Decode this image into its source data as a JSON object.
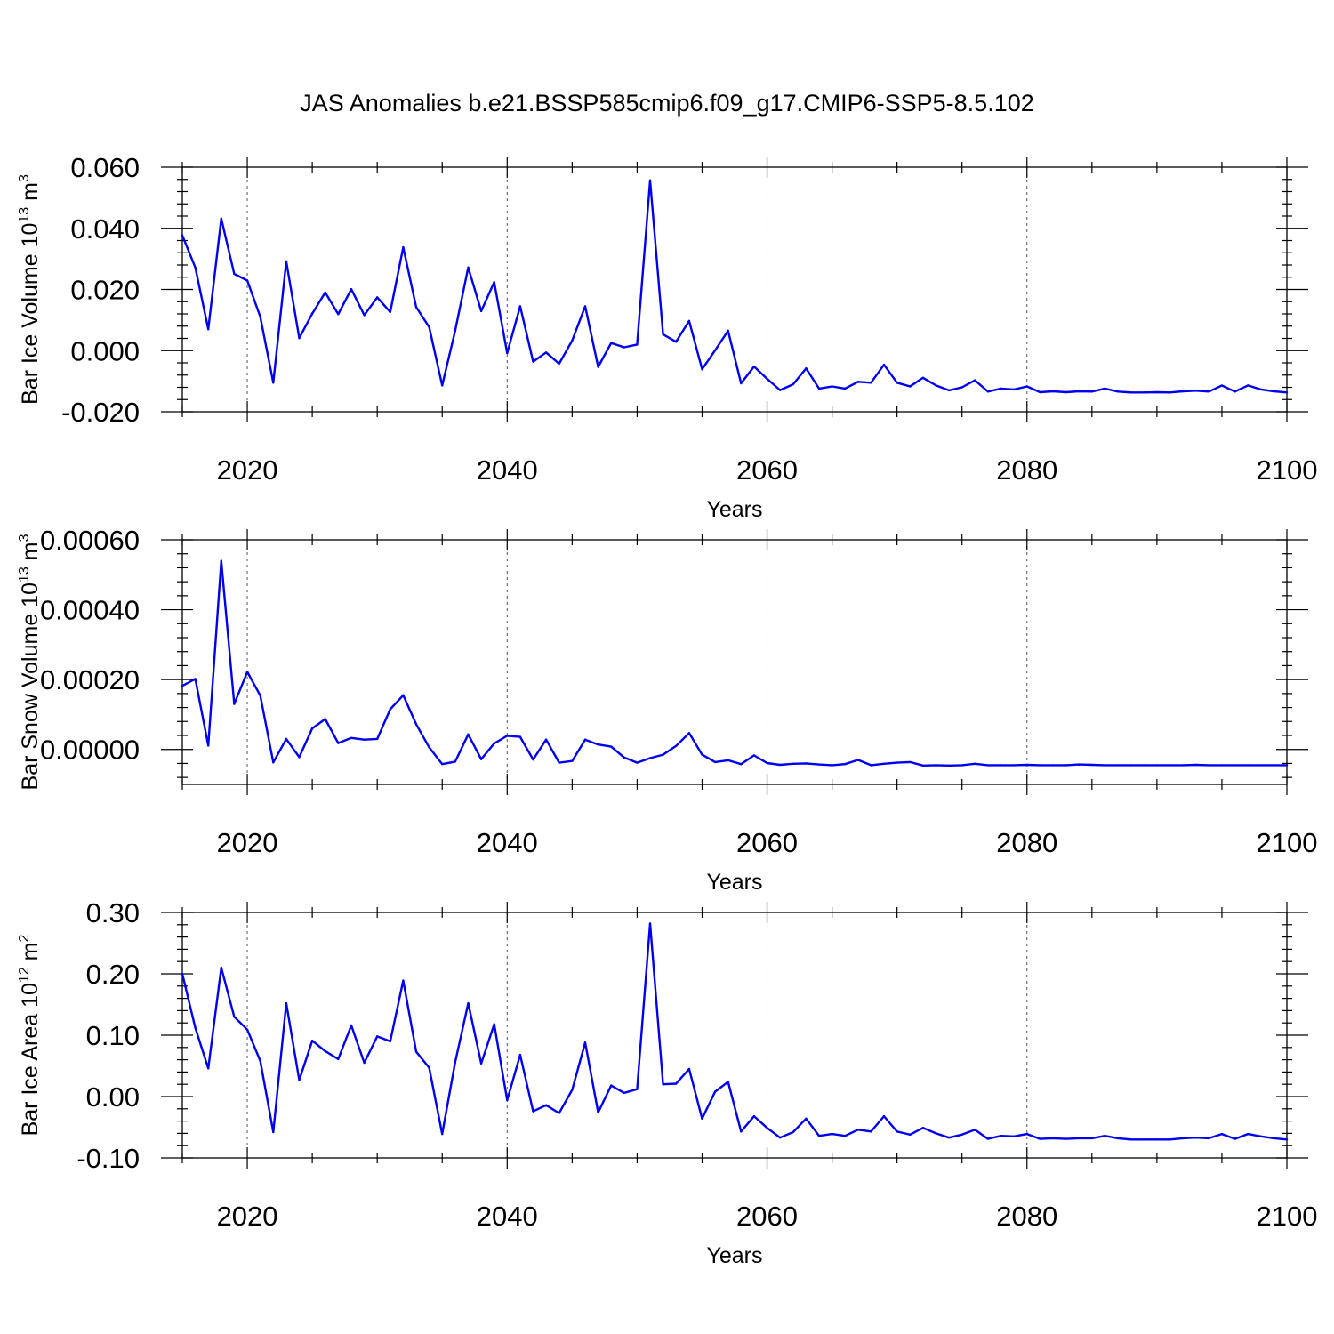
{
  "title": "JAS Anomalies b.e21.BSSP585cmip6.f09_g17.CMIP6-SSP5-8.5.102",
  "chart_data": [
    {
      "type": "line",
      "ylabel": {
        "text": "Bar Ice Volume 10",
        "exp": "13",
        "unit": "m",
        "unit_exp": "3"
      },
      "xlabel": "Years",
      "xlim": [
        2015,
        2100
      ],
      "ylim": [
        -0.02,
        0.06
      ],
      "xticks": [
        2020,
        2040,
        2060,
        2080,
        2100
      ],
      "xtick_labels": [
        "2020",
        "2040",
        "2060",
        "2080",
        "2100"
      ],
      "yticks": [
        -0.02,
        0.0,
        0.02,
        0.04,
        0.06
      ],
      "ytick_labels": [
        "-0.020",
        "0.000",
        "0.020",
        "0.040",
        "0.060"
      ],
      "grid": "vertical dashed at major x ticks",
      "color": "#0000ee",
      "x": [
        2015,
        2016,
        2017,
        2018,
        2019,
        2020,
        2021,
        2022,
        2023,
        2024,
        2025,
        2026,
        2027,
        2028,
        2029,
        2030,
        2031,
        2032,
        2033,
        2034,
        2035,
        2036,
        2037,
        2038,
        2039,
        2040,
        2041,
        2042,
        2043,
        2044,
        2045,
        2046,
        2047,
        2048,
        2049,
        2050,
        2051,
        2052,
        2053,
        2054,
        2055,
        2056,
        2057,
        2058,
        2059,
        2060,
        2061,
        2062,
        2063,
        2064,
        2065,
        2066,
        2067,
        2068,
        2069,
        2070,
        2071,
        2072,
        2073,
        2074,
        2075,
        2076,
        2077,
        2078,
        2079,
        2080,
        2081,
        2082,
        2083,
        2084,
        2085,
        2086,
        2087,
        2088,
        2089,
        2090,
        2091,
        2092,
        2093,
        2094,
        2095,
        2096,
        2097,
        2098,
        2099,
        2100
      ],
      "values": [
        0.0377,
        0.0272,
        0.007,
        0.0432,
        0.0251,
        0.0229,
        0.011,
        -0.0105,
        0.0292,
        0.0041,
        0.0121,
        0.019,
        0.0119,
        0.0201,
        0.0116,
        0.0174,
        0.0126,
        0.0338,
        0.0142,
        0.0077,
        -0.0114,
        0.0065,
        0.0272,
        0.0129,
        0.0224,
        -0.0008,
        0.0145,
        -0.0036,
        -0.0006,
        -0.0043,
        0.0033,
        0.0145,
        -0.0053,
        0.0025,
        0.0011,
        0.002,
        0.0557,
        0.0053,
        0.0029,
        0.0097,
        -0.0061,
        0.0001,
        0.0065,
        -0.0107,
        -0.0052,
        -0.0092,
        -0.0129,
        -0.011,
        -0.0058,
        -0.0124,
        -0.0117,
        -0.0124,
        -0.0102,
        -0.0105,
        -0.0046,
        -0.0105,
        -0.0117,
        -0.0089,
        -0.0114,
        -0.013,
        -0.012,
        -0.0097,
        -0.0134,
        -0.0124,
        -0.0127,
        -0.0117,
        -0.0136,
        -0.0133,
        -0.0136,
        -0.0133,
        -0.0134,
        -0.0124,
        -0.0134,
        -0.0137,
        -0.0137,
        -0.0136,
        -0.0137,
        -0.0133,
        -0.0131,
        -0.0134,
        -0.0114,
        -0.0134,
        -0.0114,
        -0.0127,
        -0.0133,
        -0.0137
      ]
    },
    {
      "type": "line",
      "ylabel": {
        "text": "Bar Snow Volume 10",
        "exp": "13",
        "unit": "m",
        "unit_exp": "3"
      },
      "xlabel": "Years",
      "xlim": [
        2015,
        2100
      ],
      "ylim": [
        -0.0001,
        0.0006
      ],
      "xticks": [
        2020,
        2040,
        2060,
        2080,
        2100
      ],
      "xtick_labels": [
        "2020",
        "2040",
        "2060",
        "2080",
        "2100"
      ],
      "yticks": [
        0.0,
        0.0002,
        0.0004,
        0.0006
      ],
      "ytick_labels": [
        "0.00000",
        "0.00020",
        "0.00040",
        "0.00060"
      ],
      "grid": "vertical dashed at major x ticks",
      "color": "#0000ee",
      "x": [
        2015,
        2016,
        2017,
        2018,
        2019,
        2020,
        2021,
        2022,
        2023,
        2024,
        2025,
        2026,
        2027,
        2028,
        2029,
        2030,
        2031,
        2032,
        2033,
        2034,
        2035,
        2036,
        2037,
        2038,
        2039,
        2040,
        2041,
        2042,
        2043,
        2044,
        2045,
        2046,
        2047,
        2048,
        2049,
        2050,
        2051,
        2052,
        2053,
        2054,
        2055,
        2056,
        2057,
        2058,
        2059,
        2060,
        2061,
        2062,
        2063,
        2064,
        2065,
        2066,
        2067,
        2068,
        2069,
        2070,
        2071,
        2072,
        2073,
        2074,
        2075,
        2076,
        2077,
        2078,
        2079,
        2080,
        2081,
        2082,
        2083,
        2084,
        2085,
        2086,
        2087,
        2088,
        2089,
        2090,
        2091,
        2092,
        2093,
        2094,
        2095,
        2096,
        2097,
        2098,
        2099,
        2100
      ],
      "values": [
        0.000182,
        0.000202,
        1.1e-05,
        0.00054,
        0.00013,
        0.000222,
        0.000154,
        -3.7e-05,
        3e-05,
        -2.2e-05,
        6e-05,
        8.7e-05,
        1.8e-05,
        3.3e-05,
        2.8e-05,
        3e-05,
        0.000115,
        0.000155,
        7.2e-05,
        6e-06,
        -4.2e-05,
        -3.5e-05,
        4.3e-05,
        -2.8e-05,
        1.7e-05,
        3.9e-05,
        3.6e-05,
        -2.9e-05,
        2.8e-05,
        -3.8e-05,
        -3.3e-05,
        2.8e-05,
        1.4e-05,
        8e-06,
        -2.3e-05,
        -3.8e-05,
        -2.5e-05,
        -1.5e-05,
        1e-05,
        4.7e-05,
        -1.5e-05,
        -3.6e-05,
        -3.1e-05,
        -4.2e-05,
        -1.7e-05,
        -3.9e-05,
        -4.4e-05,
        -4.1e-05,
        -4e-05,
        -4.3e-05,
        -4.5e-05,
        -4.2e-05,
        -3e-05,
        -4.5e-05,
        -4.1e-05,
        -3.8e-05,
        -3.6e-05,
        -4.6e-05,
        -4.5e-05,
        -4.6e-05,
        -4.5e-05,
        -4.1e-05,
        -4.5e-05,
        -4.5e-05,
        -4.5e-05,
        -4.4e-05,
        -4.5e-05,
        -4.5e-05,
        -4.5e-05,
        -4.3e-05,
        -4.4e-05,
        -4.5e-05,
        -4.5e-05,
        -4.5e-05,
        -4.5e-05,
        -4.5e-05,
        -4.5e-05,
        -4.5e-05,
        -4.4e-05,
        -4.5e-05,
        -4.5e-05,
        -4.5e-05,
        -4.5e-05,
        -4.5e-05,
        -4.5e-05,
        -4.5e-05
      ]
    },
    {
      "type": "line",
      "ylabel": {
        "text": "Bar Ice Area 10",
        "exp": "12",
        "unit": "m",
        "unit_exp": "2"
      },
      "xlabel": "Years",
      "xlim": [
        2015,
        2100
      ],
      "ylim": [
        -0.1,
        0.3
      ],
      "xticks": [
        2020,
        2040,
        2060,
        2080,
        2100
      ],
      "xtick_labels": [
        "2020",
        "2040",
        "2060",
        "2080",
        "2100"
      ],
      "yticks": [
        -0.1,
        0.0,
        0.1,
        0.2,
        0.3
      ],
      "ytick_labels": [
        "-0.10",
        "0.00",
        "0.10",
        "0.20",
        "0.30"
      ],
      "grid": "vertical dashed at major x ticks",
      "color": "#0000ee",
      "x": [
        2015,
        2016,
        2017,
        2018,
        2019,
        2020,
        2021,
        2022,
        2023,
        2024,
        2025,
        2026,
        2027,
        2028,
        2029,
        2030,
        2031,
        2032,
        2033,
        2034,
        2035,
        2036,
        2037,
        2038,
        2039,
        2040,
        2041,
        2042,
        2043,
        2044,
        2045,
        2046,
        2047,
        2048,
        2049,
        2050,
        2051,
        2052,
        2053,
        2054,
        2055,
        2056,
        2057,
        2058,
        2059,
        2060,
        2061,
        2062,
        2063,
        2064,
        2065,
        2066,
        2067,
        2068,
        2069,
        2070,
        2071,
        2072,
        2073,
        2074,
        2075,
        2076,
        2077,
        2078,
        2079,
        2080,
        2081,
        2082,
        2083,
        2084,
        2085,
        2086,
        2087,
        2088,
        2089,
        2090,
        2091,
        2092,
        2093,
        2094,
        2095,
        2096,
        2097,
        2098,
        2099,
        2100
      ],
      "values": [
        0.2,
        0.112,
        0.046,
        0.21,
        0.13,
        0.109,
        0.058,
        -0.058,
        0.152,
        0.027,
        0.091,
        0.074,
        0.061,
        0.116,
        0.055,
        0.098,
        0.09,
        0.189,
        0.073,
        0.047,
        -0.061,
        0.056,
        0.152,
        0.054,
        0.118,
        -0.006,
        0.068,
        -0.024,
        -0.014,
        -0.027,
        0.011,
        0.088,
        -0.026,
        0.018,
        0.006,
        0.012,
        0.282,
        0.02,
        0.021,
        0.045,
        -0.036,
        0.008,
        0.024,
        -0.057,
        -0.032,
        -0.051,
        -0.067,
        -0.058,
        -0.036,
        -0.064,
        -0.061,
        -0.064,
        -0.054,
        -0.057,
        -0.032,
        -0.057,
        -0.062,
        -0.051,
        -0.06,
        -0.067,
        -0.062,
        -0.054,
        -0.069,
        -0.064,
        -0.065,
        -0.061,
        -0.069,
        -0.068,
        -0.069,
        -0.068,
        -0.068,
        -0.064,
        -0.068,
        -0.07,
        -0.07,
        -0.07,
        -0.07,
        -0.068,
        -0.067,
        -0.068,
        -0.061,
        -0.069,
        -0.061,
        -0.065,
        -0.068,
        -0.07
      ]
    }
  ]
}
